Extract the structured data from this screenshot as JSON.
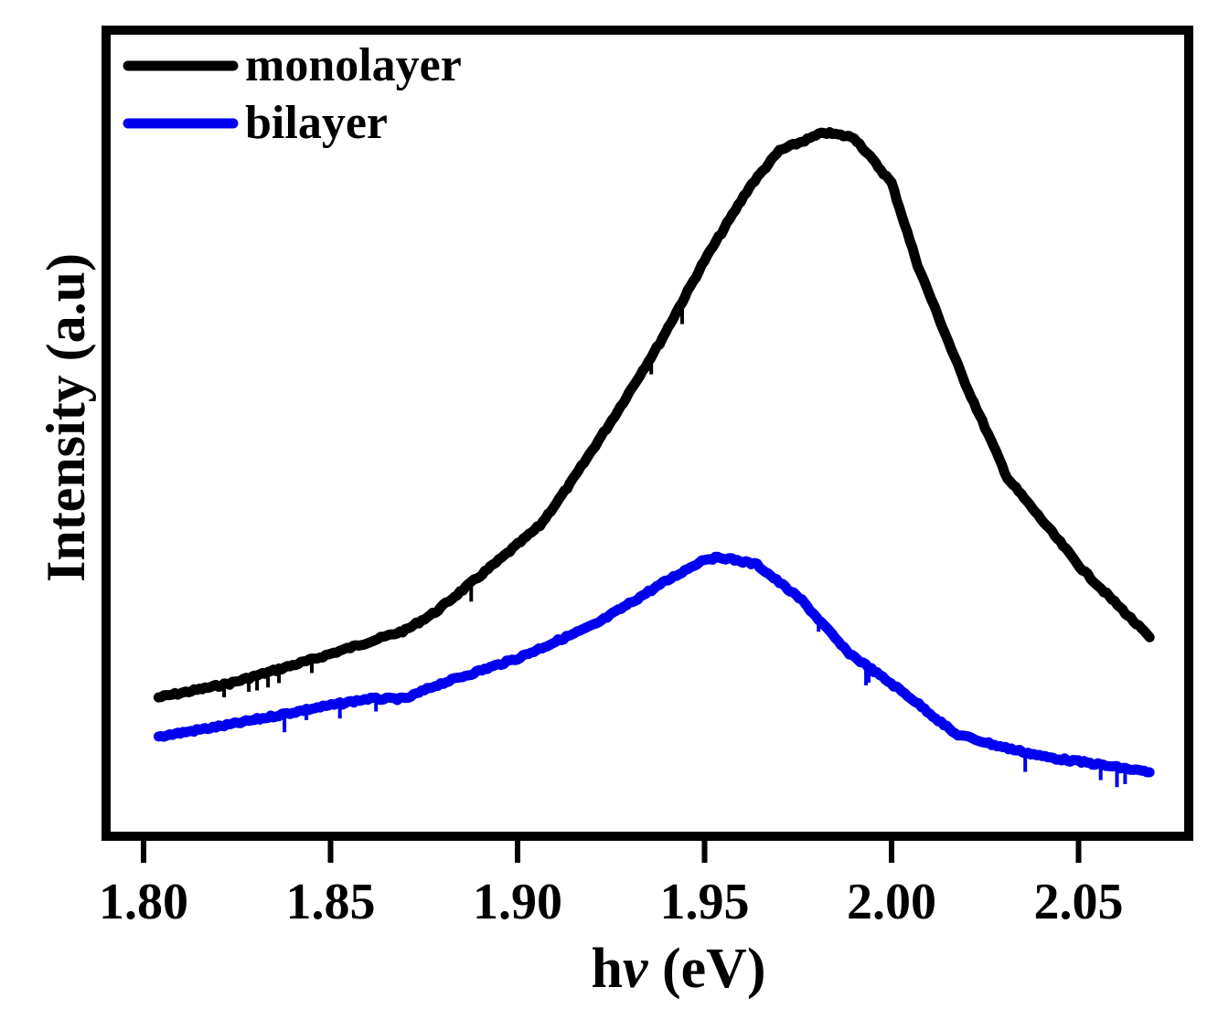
{
  "chart_data": {
    "type": "line",
    "title": "",
    "xlabel": "hν (eV)",
    "ylabel": "Intensity (a.u)",
    "xlim": [
      1.7963,
      2.0765
    ],
    "ylim": [
      0,
      115
    ],
    "x_ticks": [
      1.8,
      1.85,
      1.9,
      1.95,
      2.0,
      2.05
    ],
    "x_tick_labels": [
      "1.80",
      "1.85",
      "1.90",
      "1.95",
      "2.00",
      "2.05"
    ],
    "y_ticks": [],
    "grid": false,
    "legend_position": "upper left",
    "series": [
      {
        "name": "monolayer",
        "color": "#000000",
        "peak_x": 1.982,
        "x": [
          1.804,
          1.823,
          1.845,
          1.87,
          1.878,
          1.895,
          1.906,
          1.914,
          1.926,
          1.938,
          1.95,
          1.962,
          1.97,
          1.982,
          1.99,
          2.0,
          2.007,
          2.019,
          2.031,
          2.051,
          2.069
        ],
        "values": [
          19.2,
          21.2,
          24.6,
          28.8,
          31.4,
          38.8,
          43.8,
          49.7,
          59.5,
          69.9,
          81.7,
          92.2,
          97.4,
          100.0,
          99.3,
          92.8,
          81.0,
          65.0,
          50.6,
          37.5,
          27.8
        ]
      },
      {
        "name": "bilayer",
        "color": "#0000ee",
        "peak_x": 1.955,
        "x": [
          1.804,
          1.823,
          1.845,
          1.86,
          1.87,
          1.878,
          1.9,
          1.921,
          1.938,
          1.95,
          1.955,
          1.964,
          1.976,
          1.988,
          2.005,
          2.017,
          2.029,
          2.041,
          2.053,
          2.069
        ],
        "values": [
          13.6,
          15.3,
          17.6,
          19.0,
          19.0,
          20.9,
          24.8,
          29.7,
          35.3,
          39.0,
          39.2,
          38.2,
          33.1,
          25.8,
          19.2,
          14.0,
          12.2,
          10.7,
          9.8,
          8.5
        ]
      }
    ]
  },
  "legend": {
    "items": [
      {
        "label": "monolayer",
        "color": "#000000"
      },
      {
        "label": "bilayer",
        "color": "#0000ee"
      }
    ]
  },
  "axes": {
    "xlabel_main": "h",
    "xlabel_nu": "ν",
    "xlabel_unit": " (eV)",
    "ylabel": "Intensity (a.u)"
  }
}
